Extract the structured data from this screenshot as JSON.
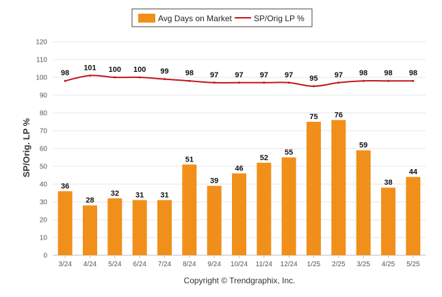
{
  "chart_data": {
    "type": "bar",
    "categories": [
      "3/24",
      "4/24",
      "5/24",
      "6/24",
      "7/24",
      "8/24",
      "9/24",
      "10/24",
      "11/24",
      "12/24",
      "1/25",
      "2/25",
      "3/25",
      "4/25",
      "5/25"
    ],
    "series": [
      {
        "name": "Avg Days on Market",
        "type": "bar",
        "color": "#f0901a",
        "values": [
          36,
          28,
          32,
          31,
          31,
          51,
          39,
          46,
          52,
          55,
          75,
          76,
          59,
          38,
          44
        ]
      },
      {
        "name": "SP/Orig LP %",
        "type": "line",
        "color": "#c0151b",
        "values": [
          98,
          101,
          100,
          100,
          99,
          98,
          97,
          97,
          97,
          97,
          95,
          97,
          98,
          98,
          98
        ]
      }
    ],
    "ylabel": "SP/Orig. LP %",
    "ylim": [
      0,
      120
    ],
    "yticks": [
      0,
      10,
      20,
      30,
      40,
      50,
      60,
      70,
      80,
      90,
      100,
      110,
      120
    ],
    "grid": true,
    "legend_position": "top-center"
  },
  "footer": "Copyright © Trendgraphix, Inc."
}
